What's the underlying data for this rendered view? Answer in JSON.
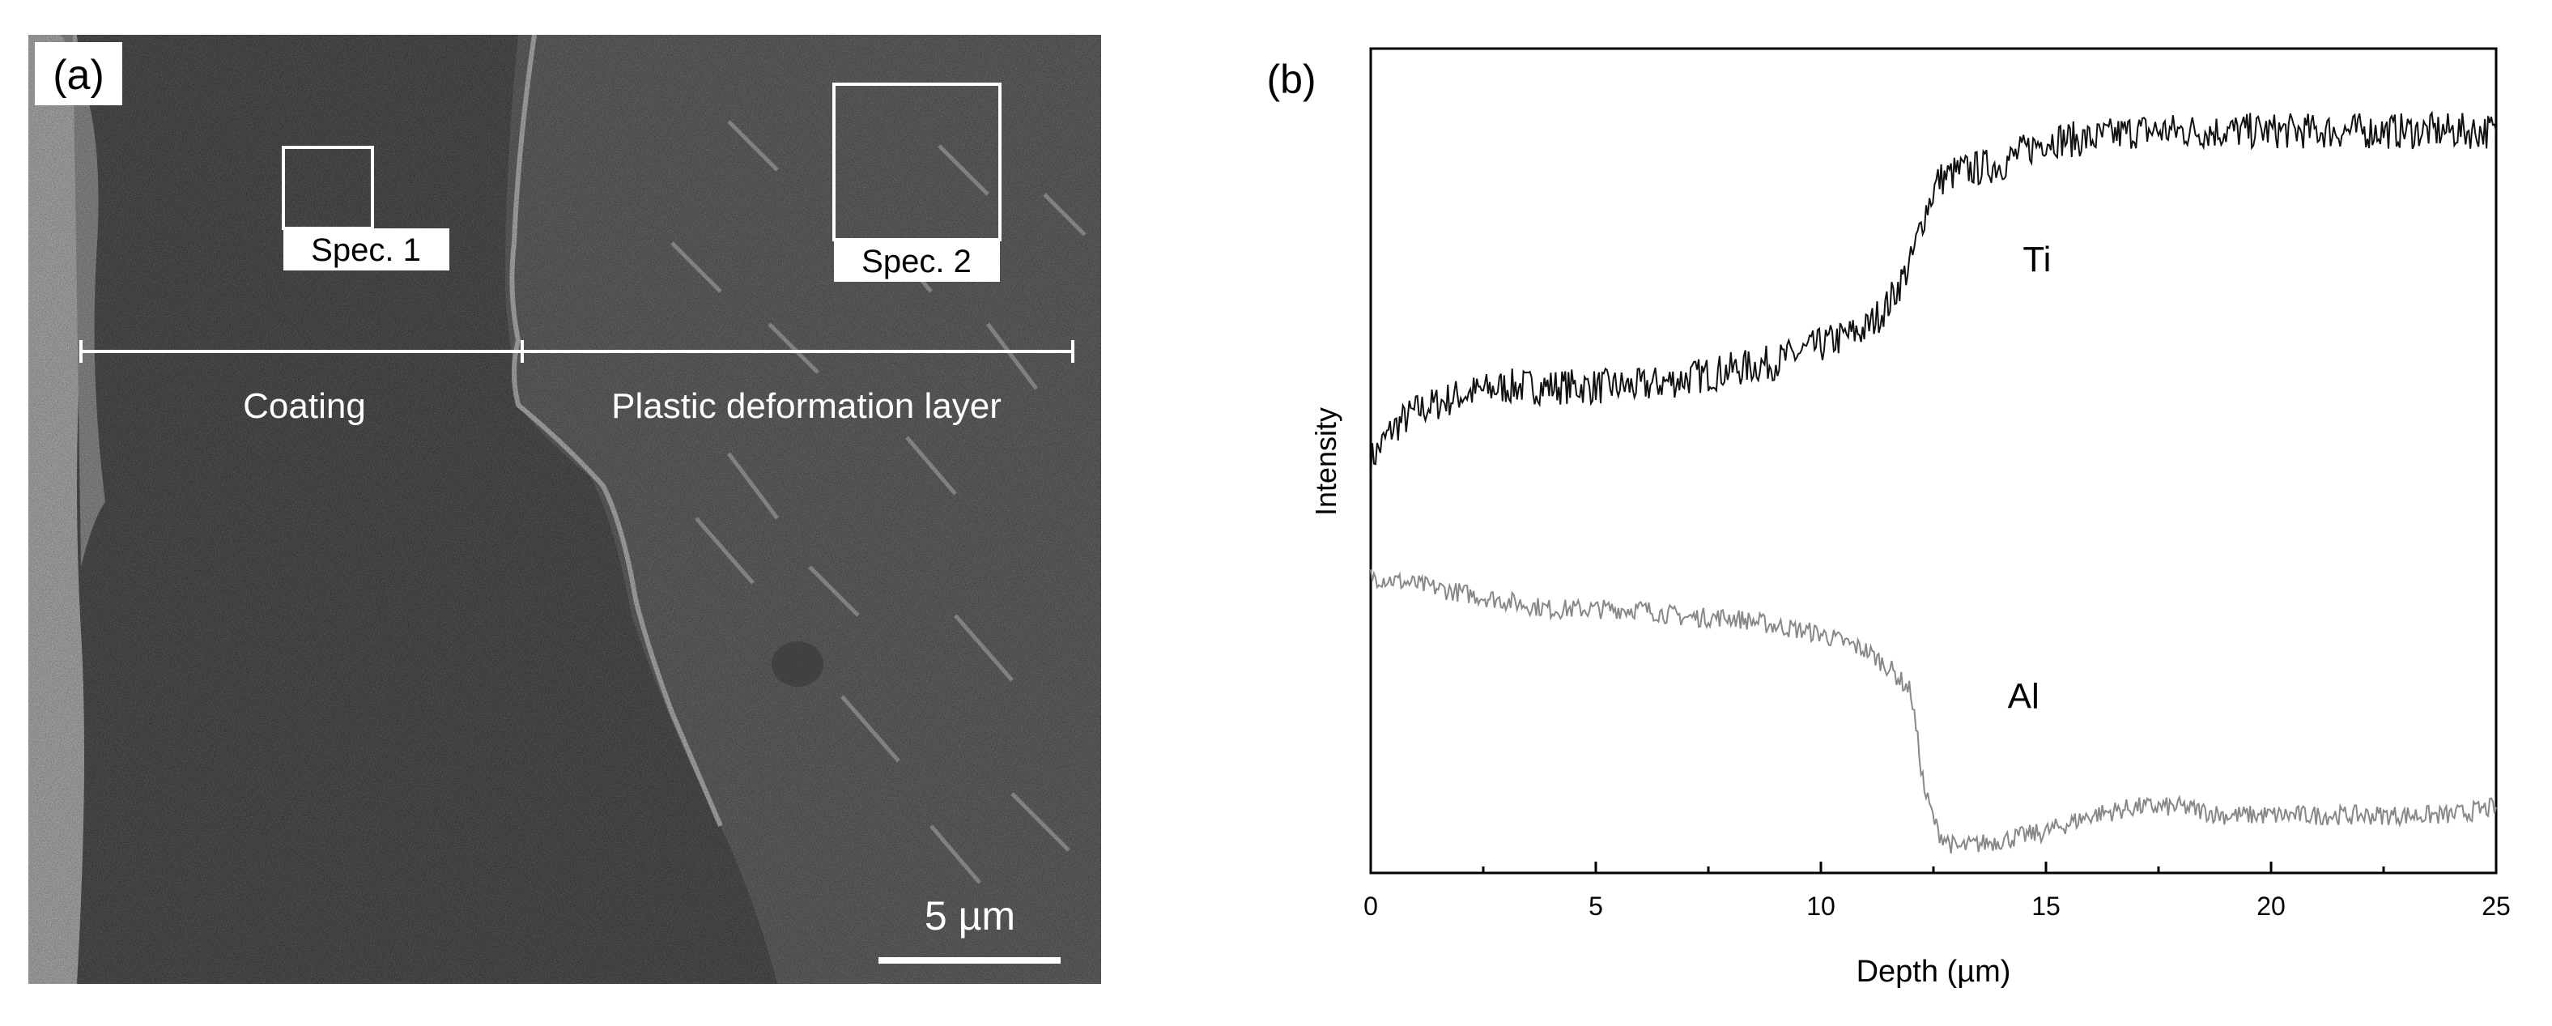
{
  "panel_a": {
    "label": "(a)",
    "spec1": "Spec. 1",
    "spec2": "Spec. 2",
    "coating_label": "Coating",
    "layer_label": "Plastic deformation layer",
    "scale_label": "5 µm"
  },
  "panel_b": {
    "label": "(b)"
  },
  "chart_data": {
    "type": "line",
    "title": "",
    "xlabel": "Depth (µm)",
    "ylabel": "Intensity",
    "xlim": [
      0,
      25
    ],
    "x_ticks": [
      0,
      5,
      10,
      15,
      20,
      25
    ],
    "y_ticks_shown": false,
    "grid": false,
    "series": [
      {
        "name": "Ti",
        "color": "#111111",
        "x": [
          0,
          0.5,
          1,
          2,
          3,
          4,
          5,
          6,
          7,
          8,
          9,
          10,
          11,
          11.5,
          12,
          12.3,
          12.6,
          13,
          14,
          15,
          16,
          17,
          18,
          19,
          20,
          21,
          22,
          23,
          24,
          25
        ],
        "y": [
          0.5,
          0.54,
          0.56,
          0.58,
          0.59,
          0.59,
          0.59,
          0.59,
          0.6,
          0.61,
          0.62,
          0.64,
          0.66,
          0.69,
          0.74,
          0.8,
          0.84,
          0.85,
          0.86,
          0.89,
          0.89,
          0.9,
          0.9,
          0.9,
          0.9,
          0.9,
          0.9,
          0.9,
          0.9,
          0.9
        ]
      },
      {
        "name": "Al",
        "color": "#888888",
        "x": [
          0,
          1,
          2,
          3,
          4,
          5,
          6,
          7,
          8,
          9,
          10,
          11,
          11.5,
          12,
          12.3,
          12.6,
          13,
          14,
          15,
          16,
          17,
          18,
          19,
          20,
          21,
          22,
          23,
          24,
          25
        ],
        "y": [
          0.36,
          0.35,
          0.34,
          0.33,
          0.32,
          0.32,
          0.32,
          0.31,
          0.31,
          0.3,
          0.29,
          0.27,
          0.25,
          0.22,
          0.1,
          0.05,
          0.03,
          0.04,
          0.05,
          0.07,
          0.08,
          0.08,
          0.07,
          0.07,
          0.07,
          0.07,
          0.07,
          0.07,
          0.08
        ]
      }
    ]
  }
}
